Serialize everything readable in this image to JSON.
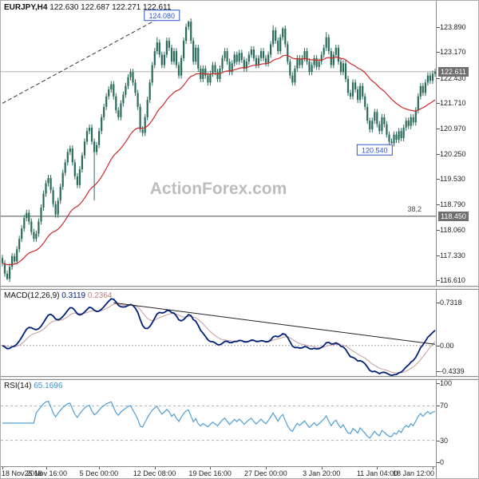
{
  "window": {
    "title_symbol": "EURJPY,H4",
    "title_ohlc": "122.630 122.687 122.271 122.611"
  },
  "watermark": "ActionForex.com",
  "chart_data": {
    "type": "candlestick",
    "symbol": "EURJPY",
    "timeframe": "H4",
    "title": "EURJPY,H4 122.630 122.687 122.271 122.611",
    "price_axis": {
      "range": [
        116.45,
        124.65
      ],
      "ticks": [
        "123.890",
        "123.170",
        "122.430",
        "121.710",
        "120.970",
        "120.250",
        "119.530",
        "118.790",
        "118.060",
        "117.330",
        "116.610"
      ]
    },
    "price_tags": [
      {
        "label": "122.611",
        "value": 122.611
      },
      {
        "label": "118.450",
        "value": 118.45
      }
    ],
    "hlines": [
      {
        "value": 122.611,
        "color": "#b0b0b0",
        "dash": ""
      },
      {
        "value": 118.45,
        "color": "#4a4a4a",
        "dash": ""
      }
    ],
    "fib_label": {
      "text": "38.2",
      "value": 118.59
    },
    "annotations": [
      {
        "text": "124.080",
        "bar": 66,
        "price": 124.22
      },
      {
        "text": "120.540",
        "bar": 154,
        "price": 120.35
      }
    ],
    "trendline_main": {
      "b1": 0,
      "p1": 121.7,
      "b2": 64,
      "p2": 124.12,
      "dash": "5,3",
      "color": "#333"
    },
    "closes": [
      117.1,
      116.8,
      116.65,
      117.0,
      117.3,
      117.15,
      117.5,
      117.8,
      118.1,
      118.4,
      118.55,
      118.3,
      118.0,
      117.8,
      117.95,
      118.3,
      118.7,
      119.1,
      119.4,
      119.55,
      119.2,
      118.8,
      118.5,
      118.9,
      119.3,
      119.7,
      120.0,
      120.3,
      120.4,
      120.0,
      119.6,
      119.35,
      119.8,
      120.2,
      120.6,
      120.9,
      121.0,
      120.6,
      120.3,
      120.5,
      120.9,
      121.3,
      121.6,
      121.9,
      122.1,
      122.25,
      121.9,
      121.5,
      121.3,
      121.7,
      121.95,
      122.2,
      122.45,
      122.6,
      122.3,
      122.0,
      121.6,
      120.95,
      120.85,
      121.3,
      121.8,
      122.3,
      122.8,
      123.2,
      123.45,
      123.1,
      122.8,
      123.1,
      123.5,
      123.3,
      122.9,
      123.2,
      122.8,
      122.5,
      123.0,
      123.5,
      123.9,
      124.05,
      123.5,
      122.9,
      123.3,
      122.7,
      122.4,
      122.7,
      122.5,
      122.3,
      122.55,
      122.8,
      122.6,
      122.4,
      122.7,
      123.0,
      123.2,
      122.9,
      122.6,
      122.85,
      123.1,
      122.9,
      123.15,
      122.95,
      122.7,
      122.9,
      123.1,
      123.25,
      123.0,
      122.8,
      123.0,
      123.2,
      123.0,
      122.85,
      123.1,
      123.4,
      123.8,
      123.5,
      123.2,
      123.6,
      123.85,
      123.4,
      122.9,
      122.5,
      122.3,
      122.7,
      123.0,
      122.8,
      123.0,
      123.2,
      122.9,
      122.6,
      122.8,
      123.0,
      122.75,
      122.9,
      123.1,
      123.3,
      123.6,
      123.2,
      122.8,
      123.1,
      123.3,
      122.9,
      122.6,
      122.85,
      122.4,
      122.0,
      121.9,
      122.3,
      122.1,
      121.8,
      122.2,
      121.9,
      121.6,
      121.2,
      120.95,
      121.2,
      121.45,
      121.1,
      120.9,
      121.3,
      121.1,
      120.8,
      120.6,
      120.55,
      120.8,
      120.65,
      120.9,
      120.7,
      121.0,
      121.2,
      121.05,
      121.3,
      121.15,
      121.5,
      121.9,
      122.2,
      122.0,
      122.3,
      122.5,
      122.35,
      122.55,
      122.61
    ],
    "wick_overrides": {
      "2": {
        "low": 116.61
      },
      "38": {
        "low": 118.9
      },
      "58": {
        "low": 120.75
      },
      "64": {
        "high": 123.6
      },
      "77": {
        "high": 124.08
      },
      "112": {
        "high": 123.95
      },
      "116": {
        "high": 123.9
      },
      "134": {
        "high": 123.75
      },
      "161": {
        "low": 120.54
      }
    },
    "ma": {
      "period": 34,
      "color": "#cc2a2a"
    },
    "macd": {
      "label": "MACD(12,26,9)",
      "value": "0.3119",
      "signal_value": "0.2364",
      "fast": 12,
      "slow": 26,
      "signal": 9,
      "range": [
        -0.52,
        0.95
      ],
      "axis": [
        {
          "label": "0.7318",
          "value": 0.7318
        },
        {
          "label": "0.00",
          "value": 0
        },
        {
          "label": "-0.4339",
          "value": -0.4339
        }
      ],
      "colors": {
        "macd": "#00217a",
        "signal": "#c79a9a",
        "zero": "#aaaaaa",
        "trendline": "#222222"
      },
      "trendline": {
        "b1": 46,
        "v1": 0.73,
        "b2": 179,
        "v2": 0.02
      }
    },
    "rsi": {
      "label": "RSI(14)",
      "value": "65.1696",
      "period": 14,
      "range": [
        0,
        100
      ],
      "levels": [
        70,
        30
      ],
      "axis": [
        {
          "label": "100",
          "value": 100
        },
        {
          "label": "70",
          "value": 70
        },
        {
          "label": "30",
          "value": 30
        },
        {
          "label": "0",
          "value": 0
        }
      ],
      "colors": {
        "rsi": "#4f9fd4",
        "level": "#9bb3c9"
      }
    },
    "time_axis": [
      {
        "label": "18 Nov 2016",
        "bar": 0
      },
      {
        "label": "25 Nov 16:00",
        "bar": 18
      },
      {
        "label": "5 Dec 00:00",
        "bar": 40
      },
      {
        "label": "12 Dec 08:00",
        "bar": 63
      },
      {
        "label": "19 Dec 16:00",
        "bar": 86
      },
      {
        "label": "27 Dec 00:00",
        "bar": 109
      },
      {
        "label": "3 Jan 20:00",
        "bar": 132
      },
      {
        "label": "11 Jan 04:00",
        "bar": 155
      },
      {
        "label": "18 Jan 12:00",
        "bar": 178
      }
    ],
    "colors": {
      "candle": "#2a6b5b",
      "annotation": "#2d53c8"
    }
  }
}
